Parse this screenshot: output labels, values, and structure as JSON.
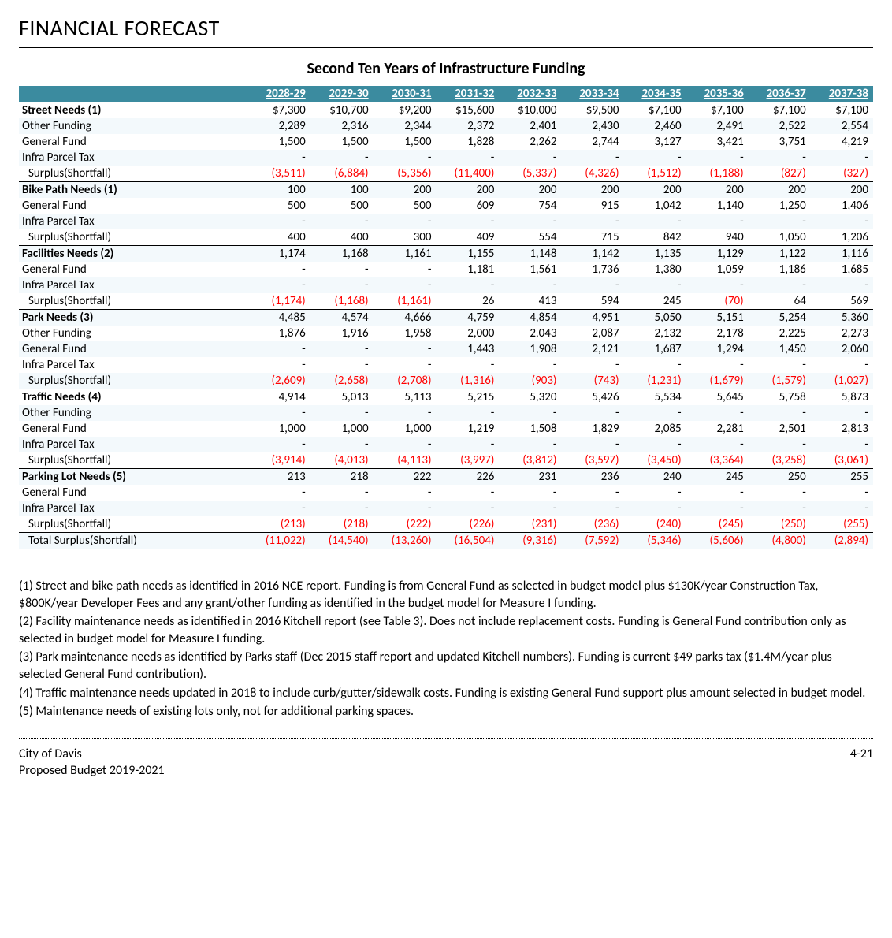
{
  "page_title": "FINANCIAL FORECAST",
  "subtitle": "Second Ten Years of Infrastructure Funding",
  "colors": {
    "header_bg": "#3b8b9f",
    "header_text": "#ffffff",
    "stripe_bg": "#f3f9fc",
    "negative": "#ff0000",
    "text": "#000000"
  },
  "years": [
    "2028-29",
    "2029-30",
    "2030-31",
    "2031-32",
    "2032-33",
    "2033-34",
    "2034-35",
    "2035-36",
    "2036-37",
    "2037-38"
  ],
  "rows": [
    {
      "label": "Street Needs (1)",
      "bold": true,
      "section_top": true,
      "values": [
        "$7,300",
        "$10,700",
        "$9,200",
        "$15,600",
        "$10,000",
        "$9,500",
        "$7,100",
        "$7,100",
        "$7,100",
        "$7,100"
      ]
    },
    {
      "label": "Other Funding",
      "stripe": true,
      "values": [
        "2,289",
        "2,316",
        "2,344",
        "2,372",
        "2,401",
        "2,430",
        "2,460",
        "2,491",
        "2,522",
        "2,554"
      ]
    },
    {
      "label": "General Fund",
      "values": [
        "1,500",
        "1,500",
        "1,500",
        "1,828",
        "2,262",
        "2,744",
        "3,127",
        "3,421",
        "3,751",
        "4,219"
      ]
    },
    {
      "label": "Infra Parcel Tax",
      "stripe": true,
      "values": [
        "-",
        "-",
        "-",
        "-",
        "-",
        "-",
        "-",
        "-",
        "-",
        "-"
      ]
    },
    {
      "label": "Surplus(Shortfall)",
      "indent": true,
      "borderb": true,
      "values": [
        "(3,511)",
        "(6,884)",
        "(5,356)",
        "(11,400)",
        "(5,337)",
        "(4,326)",
        "(1,512)",
        "(1,188)",
        "(827)",
        "(327)"
      ],
      "neg": [
        true,
        true,
        true,
        true,
        true,
        true,
        true,
        true,
        true,
        true
      ]
    },
    {
      "label": "Bike Path Needs (1)",
      "bold": true,
      "stripe": true,
      "values": [
        "100",
        "100",
        "200",
        "200",
        "200",
        "200",
        "200",
        "200",
        "200",
        "200"
      ]
    },
    {
      "label": "General Fund",
      "values": [
        "500",
        "500",
        "500",
        "609",
        "754",
        "915",
        "1,042",
        "1,140",
        "1,250",
        "1,406"
      ]
    },
    {
      "label": "Infra Parcel Tax",
      "stripe": true,
      "values": [
        "-",
        "-",
        "-",
        "-",
        "-",
        "-",
        "-",
        "-",
        "-",
        "-"
      ]
    },
    {
      "label": "Surplus(Shortfall)",
      "indent": true,
      "borderb": true,
      "values": [
        "400",
        "400",
        "300",
        "409",
        "554",
        "715",
        "842",
        "940",
        "1,050",
        "1,206"
      ]
    },
    {
      "label": "Facilities Needs (2)",
      "bold": true,
      "stripe": true,
      "values": [
        "1,174",
        "1,168",
        "1,161",
        "1,155",
        "1,148",
        "1,142",
        "1,135",
        "1,129",
        "1,122",
        "1,116"
      ]
    },
    {
      "label": "General Fund",
      "values": [
        "-",
        "-",
        "-",
        "1,181",
        "1,561",
        "1,736",
        "1,380",
        "1,059",
        "1,186",
        "1,685"
      ]
    },
    {
      "label": "Infra Parcel Tax",
      "stripe": true,
      "values": [
        "-",
        "-",
        "-",
        "-",
        "-",
        "-",
        "-",
        "-",
        "-",
        "-"
      ]
    },
    {
      "label": "Surplus(Shortfall)",
      "indent": true,
      "borderb": true,
      "values": [
        "(1,174)",
        "(1,168)",
        "(1,161)",
        "26",
        "413",
        "594",
        "245",
        "(70)",
        "64",
        "569"
      ],
      "neg": [
        true,
        true,
        true,
        false,
        false,
        false,
        false,
        true,
        false,
        false
      ]
    },
    {
      "label": "Park Needs (3)",
      "bold": true,
      "stripe": true,
      "values": [
        "4,485",
        "4,574",
        "4,666",
        "4,759",
        "4,854",
        "4,951",
        "5,050",
        "5,151",
        "5,254",
        "5,360"
      ]
    },
    {
      "label": "Other Funding",
      "values": [
        "1,876",
        "1,916",
        "1,958",
        "2,000",
        "2,043",
        "2,087",
        "2,132",
        "2,178",
        "2,225",
        "2,273"
      ]
    },
    {
      "label": "General Fund",
      "stripe": true,
      "values": [
        "-",
        "-",
        "-",
        "1,443",
        "1,908",
        "2,121",
        "1,687",
        "1,294",
        "1,450",
        "2,060"
      ]
    },
    {
      "label": "Infra Parcel Tax",
      "values": [
        "-",
        "-",
        "-",
        "-",
        "-",
        "-",
        "-",
        "-",
        "-",
        "-"
      ]
    },
    {
      "label": "Surplus(Shortfall)",
      "stripe": true,
      "indent": true,
      "borderb": true,
      "values": [
        "(2,609)",
        "(2,658)",
        "(2,708)",
        "(1,316)",
        "(903)",
        "(743)",
        "(1,231)",
        "(1,679)",
        "(1,579)",
        "(1,027)"
      ],
      "neg": [
        true,
        true,
        true,
        true,
        true,
        true,
        true,
        true,
        true,
        true
      ]
    },
    {
      "label": "Traffic Needs (4)",
      "bold": true,
      "values": [
        "4,914",
        "5,013",
        "5,113",
        "5,215",
        "5,320",
        "5,426",
        "5,534",
        "5,645",
        "5,758",
        "5,873"
      ]
    },
    {
      "label": "Other Funding",
      "stripe": true,
      "values": [
        "-",
        "-",
        "-",
        "-",
        "-",
        "-",
        "-",
        "-",
        "-",
        "-"
      ]
    },
    {
      "label": "General Fund",
      "values": [
        "1,000",
        "1,000",
        "1,000",
        "1,219",
        "1,508",
        "1,829",
        "2,085",
        "2,281",
        "2,501",
        "2,813"
      ]
    },
    {
      "label": "Infra Parcel Tax",
      "stripe": true,
      "values": [
        "-",
        "-",
        "-",
        "-",
        "-",
        "-",
        "-",
        "-",
        "-",
        "-"
      ]
    },
    {
      "label": "Surplus(Shortfall)",
      "indent": true,
      "borderb": true,
      "values": [
        "(3,914)",
        "(4,013)",
        "(4,113)",
        "(3,997)",
        "(3,812)",
        "(3,597)",
        "(3,450)",
        "(3,364)",
        "(3,258)",
        "(3,061)"
      ],
      "neg": [
        true,
        true,
        true,
        true,
        true,
        true,
        true,
        true,
        true,
        true
      ]
    },
    {
      "label": "Parking Lot Needs  (5)",
      "bold": true,
      "stripe": true,
      "values": [
        "213",
        "218",
        "222",
        "226",
        "231",
        "236",
        "240",
        "245",
        "250",
        "255"
      ]
    },
    {
      "label": "General Fund",
      "values": [
        "-",
        "-",
        "-",
        "-",
        "-",
        "-",
        "-",
        "-",
        "-",
        "-"
      ]
    },
    {
      "label": "Infra Parcel Tax",
      "stripe": true,
      "values": [
        "-",
        "-",
        "-",
        "-",
        "-",
        "-",
        "-",
        "-",
        "-",
        "-"
      ]
    },
    {
      "label": "Surplus(Shortfall)",
      "indent": true,
      "borderb": true,
      "values": [
        "(213)",
        "(218)",
        "(222)",
        "(226)",
        "(231)",
        "(236)",
        "(240)",
        "(245)",
        "(250)",
        "(255)"
      ],
      "neg": [
        true,
        true,
        true,
        true,
        true,
        true,
        true,
        true,
        true,
        true
      ]
    },
    {
      "label": "Total Surplus(Shortfall)",
      "indent": true,
      "borderb": true,
      "stripe": true,
      "values": [
        "(11,022)",
        "(14,540)",
        "(13,260)",
        "(16,504)",
        "(9,316)",
        "(7,592)",
        "(5,346)",
        "(5,606)",
        "(4,800)",
        "(2,894)"
      ],
      "neg": [
        true,
        true,
        true,
        true,
        true,
        true,
        true,
        true,
        true,
        true
      ]
    }
  ],
  "notes": [
    "(1) Street and bike path needs as identified in 2016 NCE report. Funding is from General Fund as selected in budget model plus $130K/year Construction Tax, $800K/year Developer Fees and any grant/other funding as identified in the budget model for Measure I funding.",
    "(2) Facility maintenance needs as identified in 2016 Kitchell report (see Table 3). Does not include replacement costs. Funding is General Fund contribution only as selected in budget model for Measure I funding.",
    "(3) Park maintenance needs as identified by Parks staff (Dec 2015 staff report and updated Kitchell numbers). Funding is current $49 parks tax ($1.4M/year plus selected General Fund contribution).",
    "(4) Traffic maintenance needs updated in 2018 to include curb/gutter/sidewalk costs. Funding is existing General Fund support plus amount selected in budget model.",
    "(5) Maintenance needs of existing lots only, not for additional parking spaces."
  ],
  "footer": {
    "left1": "City of Davis",
    "left2": "Proposed Budget 2019-2021",
    "right": "4-21"
  }
}
